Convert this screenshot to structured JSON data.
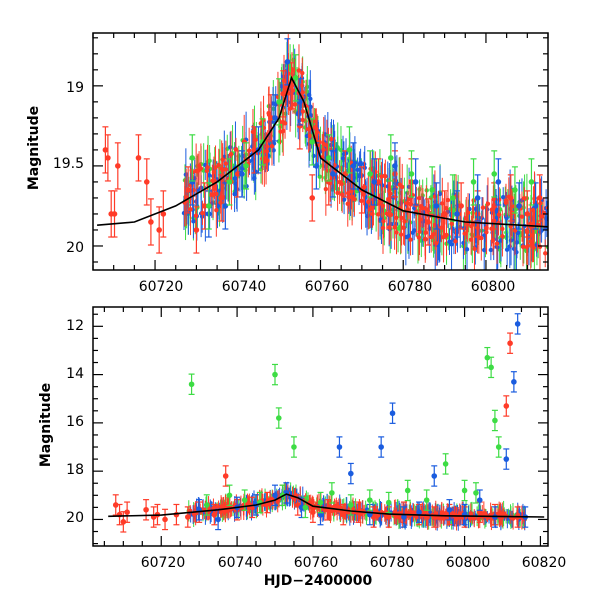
{
  "chart_data": [
    {
      "type": "scatter",
      "title": "",
      "xlabel": "",
      "ylabel": "Magnitude",
      "xlim": [
        60705,
        60815
      ],
      "ylim": [
        20.15,
        18.67
      ],
      "y_inverted": true,
      "x_tick_labels": [
        "60720",
        "60740",
        "60760",
        "60780",
        "60800"
      ],
      "y_tick_labels": [
        "19",
        "19.5",
        "20"
      ],
      "series": [
        {
          "color": "#ff3b28",
          "points": [
            [
              60708,
              19.4
            ],
            [
              60708.6,
              19.45
            ],
            [
              60709.4,
              19.8
            ],
            [
              60710.2,
              19.8
            ],
            [
              60711,
              19.5
            ],
            [
              60716,
              19.45
            ],
            [
              60718,
              19.6
            ],
            [
              60719,
              19.85
            ],
            [
              60721,
              19.9
            ],
            [
              60722,
              19.8
            ],
            [
              60728,
              19.65
            ],
            [
              60730,
              19.9
            ],
            [
              60732,
              19.75
            ],
            [
              60736,
              19.7
            ],
            [
              60740,
              19.55
            ],
            [
              60744,
              19.4
            ],
            [
              60748,
              19.2
            ],
            [
              60751,
              19.05
            ],
            [
              60753,
              19.0
            ],
            [
              60755,
              19.25
            ],
            [
              60758,
              19.7
            ],
            [
              60762,
              19.6
            ],
            [
              60766,
              19.55
            ],
            [
              60770,
              19.65
            ],
            [
              60774,
              19.6
            ],
            [
              60778,
              19.55
            ],
            [
              60782,
              19.6
            ],
            [
              60786,
              19.85
            ],
            [
              60790,
              19.8
            ],
            [
              60794,
              19.75
            ],
            [
              60798,
              19.8
            ],
            [
              60802,
              19.75
            ],
            [
              60806,
              19.7
            ],
            [
              60810,
              19.8
            ],
            [
              60813,
              19.7
            ]
          ]
        },
        {
          "color": "#1a5cdf",
          "points": [
            [
              60729,
              19.6
            ],
            [
              60733,
              19.8
            ],
            [
              60737,
              19.75
            ],
            [
              60741,
              19.55
            ],
            [
              60745,
              19.4
            ],
            [
              60749,
              19.2
            ],
            [
              60752,
              18.85
            ],
            [
              60755,
              19.1
            ],
            [
              60759,
              19.5
            ],
            [
              60763,
              19.55
            ],
            [
              60768,
              19.5
            ],
            [
              60773,
              19.6
            ],
            [
              60778,
              19.5
            ],
            [
              60783,
              19.6
            ],
            [
              60788,
              19.75
            ],
            [
              60793,
              19.8
            ],
            [
              60798,
              19.7
            ],
            [
              60803,
              19.6
            ],
            [
              60808,
              19.75
            ],
            [
              60812,
              19.75
            ]
          ]
        },
        {
          "color": "#3ddc44",
          "points": [
            [
              60729,
              19.45
            ],
            [
              60733,
              19.75
            ],
            [
              60738,
              19.6
            ],
            [
              60742,
              19.5
            ],
            [
              60746,
              19.35
            ],
            [
              60750,
              19.1
            ],
            [
              60754,
              18.95
            ],
            [
              60758,
              19.35
            ],
            [
              60762,
              19.45
            ],
            [
              60767,
              19.4
            ],
            [
              60772,
              19.55
            ],
            [
              60777,
              19.45
            ],
            [
              60782,
              19.55
            ],
            [
              60787,
              19.65
            ],
            [
              60792,
              19.7
            ],
            [
              60797,
              19.6
            ],
            [
              60802,
              19.55
            ],
            [
              60807,
              19.65
            ],
            [
              60811,
              19.6
            ]
          ]
        }
      ],
      "model_curve": [
        [
          60706,
          19.87
        ],
        [
          60715,
          19.85
        ],
        [
          60725,
          19.75
        ],
        [
          60735,
          19.6
        ],
        [
          60745,
          19.4
        ],
        [
          60750,
          19.2
        ],
        [
          60753,
          18.95
        ],
        [
          60756,
          19.1
        ],
        [
          60760,
          19.45
        ],
        [
          60770,
          19.65
        ],
        [
          60780,
          19.78
        ],
        [
          60795,
          19.85
        ],
        [
          60815,
          19.88
        ]
      ]
    },
    {
      "type": "scatter",
      "title": "",
      "xlabel": "HJD−2400000",
      "ylabel": "Magnitude",
      "xlim": [
        60702,
        60822
      ],
      "ylim": [
        21.1,
        11.2
      ],
      "y_inverted": true,
      "x_tick_labels": [
        "60720",
        "60740",
        "60760",
        "60780",
        "60800",
        "60820"
      ],
      "y_tick_labels": [
        "12",
        "14",
        "16",
        "18",
        "20"
      ],
      "series": [
        {
          "color": "#ff3b28",
          "points": [
            [
              60708,
              19.4
            ],
            [
              60709,
              19.8
            ],
            [
              60710,
              20.1
            ],
            [
              60711,
              19.7
            ],
            [
              60716,
              19.6
            ],
            [
              60718,
              19.9
            ],
            [
              60719,
              19.8
            ],
            [
              60721,
              20.0
            ],
            [
              60724,
              19.8
            ],
            [
              60727,
              19.9
            ],
            [
              60730,
              19.7
            ],
            [
              60734,
              19.8
            ],
            [
              60737,
              18.2
            ],
            [
              60740,
              19.6
            ],
            [
              60744,
              19.5
            ],
            [
              60748,
              19.3
            ],
            [
              60752,
              19.0
            ],
            [
              60756,
              19.4
            ],
            [
              60760,
              19.7
            ],
            [
              60764,
              19.6
            ],
            [
              60768,
              19.8
            ],
            [
              60772,
              19.7
            ],
            [
              60776,
              19.9
            ],
            [
              60780,
              19.9
            ],
            [
              60784,
              19.7
            ],
            [
              60788,
              19.8
            ],
            [
              60792,
              19.9
            ],
            [
              60796,
              19.8
            ],
            [
              60800,
              19.9
            ],
            [
              60804,
              19.7
            ],
            [
              60808,
              19.8
            ],
            [
              60811,
              15.3
            ],
            [
              60812,
              12.7
            ],
            [
              60814,
              19.9
            ]
          ]
        },
        {
          "color": "#1a5cdf",
          "points": [
            [
              60730,
              19.6
            ],
            [
              60735,
              20.0
            ],
            [
              60740,
              19.5
            ],
            [
              60745,
              19.4
            ],
            [
              60750,
              19.0
            ],
            [
              60753,
              18.9
            ],
            [
              60757,
              19.5
            ],
            [
              60762,
              19.8
            ],
            [
              60767,
              17.0
            ],
            [
              60770,
              18.1
            ],
            [
              60775,
              19.8
            ],
            [
              60778,
              17.0
            ],
            [
              60781,
              15.6
            ],
            [
              60784,
              19.9
            ],
            [
              60788,
              19.7
            ],
            [
              60792,
              18.2
            ],
            [
              60796,
              19.6
            ],
            [
              60800,
              19.8
            ],
            [
              60804,
              19.2
            ],
            [
              60808,
              19.9
            ],
            [
              60811,
              17.5
            ],
            [
              60813,
              14.3
            ],
            [
              60814,
              11.9
            ],
            [
              60816,
              19.9
            ]
          ]
        },
        {
          "color": "#3ddc44",
          "points": [
            [
              60728,
              14.4
            ],
            [
              60732,
              19.4
            ],
            [
              60738,
              19.0
            ],
            [
              60742,
              19.2
            ],
            [
              60746,
              19.3
            ],
            [
              60750,
              14.0
            ],
            [
              60751,
              15.8
            ],
            [
              60752,
              19.0
            ],
            [
              60755,
              17.0
            ],
            [
              60758,
              19.5
            ],
            [
              60762,
              19.3
            ],
            [
              60765,
              18.9
            ],
            [
              60770,
              19.4
            ],
            [
              60775,
              19.2
            ],
            [
              60780,
              19.3
            ],
            [
              60785,
              18.8
            ],
            [
              60790,
              19.2
            ],
            [
              60795,
              17.7
            ],
            [
              60800,
              18.8
            ],
            [
              60803,
              18.9
            ],
            [
              60806,
              13.3
            ],
            [
              60807,
              13.7
            ],
            [
              60808,
              15.9
            ],
            [
              60809,
              17.0
            ]
          ]
        }
      ],
      "model_curve": [
        [
          60706,
          19.87
        ],
        [
          60720,
          19.82
        ],
        [
          60735,
          19.6
        ],
        [
          60745,
          19.4
        ],
        [
          60750,
          19.2
        ],
        [
          60753,
          18.95
        ],
        [
          60756,
          19.1
        ],
        [
          60760,
          19.45
        ],
        [
          60770,
          19.65
        ],
        [
          60780,
          19.78
        ],
        [
          60795,
          19.85
        ],
        [
          60821,
          19.9
        ]
      ]
    }
  ]
}
